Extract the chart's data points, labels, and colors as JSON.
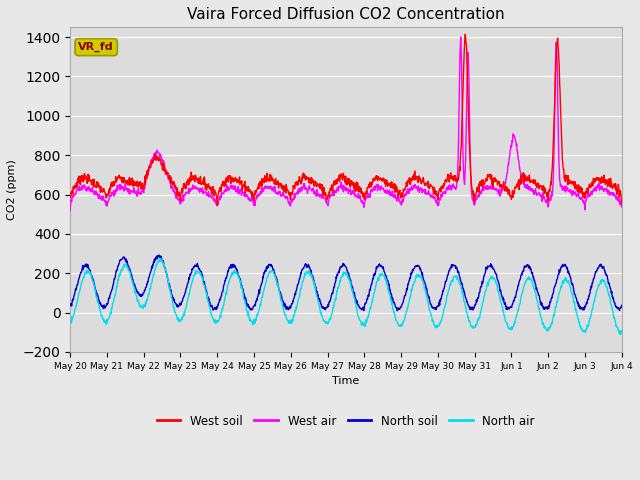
{
  "title": "Vaira Forced Diffusion CO2 Concentration",
  "xlabel": "Time",
  "ylabel": "CO2 (ppm)",
  "ylim": [
    -200,
    1450
  ],
  "yticks": [
    -200,
    0,
    200,
    400,
    600,
    800,
    1000,
    1200,
    1400
  ],
  "n_days": 15,
  "colors": {
    "west_soil": "#ff0000",
    "west_air": "#ff00ff",
    "north_soil": "#0000cc",
    "north_air": "#00ddee"
  },
  "legend_labels": [
    "West soil",
    "West air",
    "North soil",
    "North air"
  ],
  "vr_fd_box_color": "#cccc00",
  "vr_fd_text_color": "#8b0000",
  "background_color": "#dcdcdc",
  "fig_bg_color": "#e8e8e8",
  "linewidth": 1.0,
  "title_fontsize": 11
}
